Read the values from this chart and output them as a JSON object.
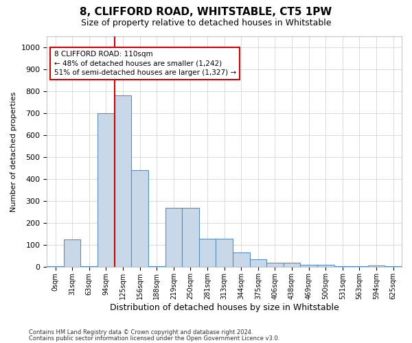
{
  "title": "8, CLIFFORD ROAD, WHITSTABLE, CT5 1PW",
  "subtitle": "Size of property relative to detached houses in Whitstable",
  "xlabel": "Distribution of detached houses by size in Whitstable",
  "ylabel": "Number of detached properties",
  "bar_labels": [
    "0sqm",
    "31sqm",
    "63sqm",
    "94sqm",
    "125sqm",
    "156sqm",
    "188sqm",
    "219sqm",
    "250sqm",
    "281sqm",
    "313sqm",
    "344sqm",
    "375sqm",
    "406sqm",
    "438sqm",
    "469sqm",
    "500sqm",
    "531sqm",
    "563sqm",
    "594sqm",
    "625sqm"
  ],
  "bar_heights": [
    5,
    125,
    5,
    700,
    780,
    440,
    5,
    270,
    270,
    130,
    130,
    68,
    35,
    20,
    20,
    10,
    10,
    5,
    5,
    8,
    5
  ],
  "bar_color": "#c8d8e8",
  "bar_edge_color": "#5b8db8",
  "vline_color": "#cc0000",
  "annotation_text": "8 CLIFFORD ROAD: 110sqm\n← 48% of detached houses are smaller (1,242)\n51% of semi-detached houses are larger (1,327) →",
  "annotation_box_color": "#ffffff",
  "annotation_box_edge": "#cc0000",
  "ylim": [
    0,
    1050
  ],
  "yticks": [
    0,
    100,
    200,
    300,
    400,
    500,
    600,
    700,
    800,
    900,
    1000
  ],
  "footer1": "Contains HM Land Registry data © Crown copyright and database right 2024.",
  "footer2": "Contains public sector information licensed under the Open Government Licence v3.0.",
  "bg_color": "#ffffff",
  "grid_color": "#cccccc",
  "title_fontsize": 11,
  "subtitle_fontsize": 9,
  "tick_fontsize": 7,
  "ylabel_fontsize": 8,
  "xlabel_fontsize": 9
}
